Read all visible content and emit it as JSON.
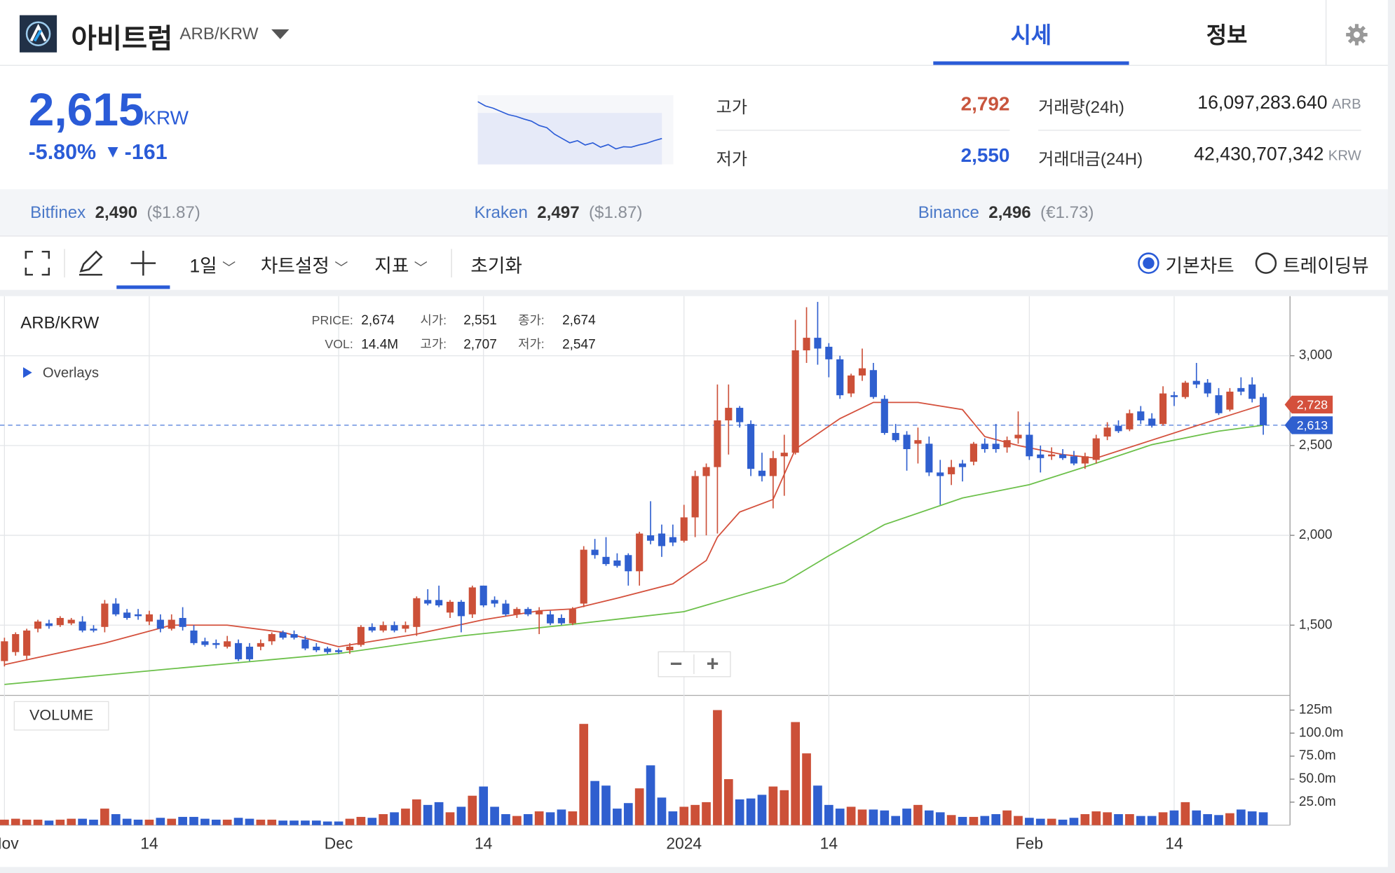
{
  "header": {
    "name": "아비트럼",
    "pair": "ARB/KRW",
    "tabs": [
      "시세",
      "정보"
    ]
  },
  "quote": {
    "price": "2,615",
    "unit": "KRW",
    "change_rate": "-5.80%",
    "direction": "▼",
    "change": "-161",
    "sparkline": {
      "values": [
        2810,
        2790,
        2780,
        2765,
        2750,
        2742,
        2730,
        2720,
        2700,
        2690,
        2660,
        2640,
        2620,
        2630,
        2610,
        2620,
        2600,
        2612,
        2592,
        2602,
        2600,
        2610,
        2618,
        2630,
        2640
      ],
      "ylim": [
        2520,
        2840
      ],
      "color": "#2a5bd7"
    }
  },
  "stats": [
    {
      "label": "고가",
      "value": "2,792"
    },
    {
      "label": "저가",
      "value": "2,550"
    },
    {
      "label": "거래량(24h)",
      "value": "16,097,283.640",
      "unit": "ARB"
    },
    {
      "label": "거래대금(24H)",
      "value": "42,430,707,342",
      "unit": "KRW"
    }
  ],
  "exchanges": [
    {
      "name": "Bitfinex",
      "price": "2,490",
      "ref": "($1.87)"
    },
    {
      "name": "Kraken",
      "price": "2,497",
      "ref": "($1.87)"
    },
    {
      "name": "Binance",
      "price": "2,496",
      "ref": "(€1.73)"
    }
  ],
  "toolbar": {
    "interval": "1일",
    "settings": "차트설정",
    "indicators": "지표",
    "reset": "초기화",
    "modes": [
      "기본차트",
      "트레이딩뷰"
    ]
  },
  "chart_data": {
    "type": "candlestick",
    "title": "ARB/KRW",
    "overlays_label": "Overlays",
    "volume_label": "VOLUME",
    "zoom": [
      "−",
      "+"
    ],
    "info": [
      [
        {
          "label": "PRICE:",
          "value": "2,674"
        },
        {
          "label": "시가:",
          "value": "2,551"
        },
        {
          "label": "종가:",
          "value": "2,674"
        }
      ],
      [
        {
          "label": "VOL:",
          "value": "14.4M"
        },
        {
          "label": "고가:",
          "value": "2,707"
        },
        {
          "label": "저가:",
          "value": "2,547"
        }
      ]
    ],
    "up_color": "#cc5038",
    "down_color": "#2f5fcf",
    "grid": true,
    "ohlc": [
      [
        1300,
        1430,
        1270,
        1410
      ],
      [
        1350,
        1460,
        1330,
        1450
      ],
      [
        1330,
        1480,
        1310,
        1470
      ],
      [
        1480,
        1530,
        1460,
        1520
      ],
      [
        1510,
        1530,
        1480,
        1495
      ],
      [
        1500,
        1550,
        1490,
        1540
      ],
      [
        1510,
        1540,
        1500,
        1530
      ],
      [
        1520,
        1550,
        1460,
        1470
      ],
      [
        1480,
        1500,
        1460,
        1470
      ],
      [
        1490,
        1640,
        1460,
        1620
      ],
      [
        1620,
        1650,
        1550,
        1560
      ],
      [
        1570,
        1590,
        1530,
        1540
      ],
      [
        1560,
        1590,
        1530,
        1550
      ],
      [
        1520,
        1580,
        1500,
        1560
      ],
      [
        1530,
        1560,
        1460,
        1480
      ],
      [
        1480,
        1560,
        1470,
        1530
      ],
      [
        1540,
        1600,
        1470,
        1490
      ],
      [
        1470,
        1500,
        1390,
        1400
      ],
      [
        1410,
        1430,
        1380,
        1390
      ],
      [
        1400,
        1420,
        1370,
        1390
      ],
      [
        1380,
        1440,
        1370,
        1410
      ],
      [
        1400,
        1420,
        1300,
        1310
      ],
      [
        1380,
        1400,
        1300,
        1310
      ],
      [
        1380,
        1420,
        1360,
        1400
      ],
      [
        1410,
        1460,
        1390,
        1450
      ],
      [
        1460,
        1470,
        1420,
        1430
      ],
      [
        1450,
        1470,
        1420,
        1430
      ],
      [
        1420,
        1440,
        1360,
        1370
      ],
      [
        1380,
        1400,
        1350,
        1360
      ],
      [
        1370,
        1380,
        1340,
        1350
      ],
      [
        1360,
        1370,
        1340,
        1350
      ],
      [
        1360,
        1400,
        1340,
        1380
      ],
      [
        1390,
        1500,
        1380,
        1490
      ],
      [
        1490,
        1510,
        1460,
        1470
      ],
      [
        1470,
        1520,
        1460,
        1500
      ],
      [
        1500,
        1520,
        1460,
        1470
      ],
      [
        1480,
        1520,
        1460,
        1500
      ],
      [
        1490,
        1660,
        1440,
        1650
      ],
      [
        1640,
        1700,
        1610,
        1620
      ],
      [
        1640,
        1720,
        1600,
        1610
      ],
      [
        1570,
        1640,
        1540,
        1630
      ],
      [
        1630,
        1640,
        1460,
        1550
      ],
      [
        1560,
        1720,
        1540,
        1710
      ],
      [
        1720,
        1720,
        1600,
        1610
      ],
      [
        1640,
        1660,
        1600,
        1620
      ],
      [
        1620,
        1640,
        1550,
        1560
      ],
      [
        1560,
        1600,
        1540,
        1590
      ],
      [
        1590,
        1600,
        1550,
        1560
      ],
      [
        1560,
        1600,
        1450,
        1580
      ],
      [
        1560,
        1580,
        1500,
        1510
      ],
      [
        1540,
        1560,
        1500,
        1510
      ],
      [
        1510,
        1600,
        1500,
        1590
      ],
      [
        1620,
        1940,
        1600,
        1920
      ],
      [
        1920,
        1980,
        1870,
        1890
      ],
      [
        1880,
        1990,
        1830,
        1840
      ],
      [
        1860,
        1900,
        1820,
        1830
      ],
      [
        1890,
        1900,
        1720,
        1800
      ],
      [
        1800,
        2020,
        1720,
        2010
      ],
      [
        2000,
        2190,
        1950,
        1970
      ],
      [
        2010,
        2060,
        1880,
        1940
      ],
      [
        1990,
        2060,
        1940,
        1960
      ],
      [
        1970,
        2170,
        1960,
        2100
      ],
      [
        2100,
        2360,
        1990,
        2330
      ],
      [
        2330,
        2400,
        2000,
        2380
      ],
      [
        2380,
        2840,
        2010,
        2640
      ],
      [
        2640,
        2840,
        2450,
        2710
      ],
      [
        2710,
        2720,
        2600,
        2630
      ],
      [
        2620,
        2640,
        2330,
        2370
      ],
      [
        2360,
        2460,
        2300,
        2330
      ],
      [
        2330,
        2470,
        2150,
        2430
      ],
      [
        2440,
        2560,
        2220,
        2460
      ],
      [
        2460,
        3200,
        2450,
        3030
      ],
      [
        3030,
        3270,
        2960,
        3100
      ],
      [
        3100,
        3300,
        2950,
        3040
      ],
      [
        3050,
        3070,
        2880,
        2980
      ],
      [
        2980,
        3000,
        2760,
        2780
      ],
      [
        2790,
        2900,
        2770,
        2890
      ],
      [
        2890,
        3040,
        2860,
        2930
      ],
      [
        2920,
        2960,
        2760,
        2770
      ],
      [
        2760,
        2780,
        2560,
        2570
      ],
      [
        2570,
        2620,
        2520,
        2530
      ],
      [
        2560,
        2580,
        2360,
        2480
      ],
      [
        2510,
        2600,
        2400,
        2530
      ],
      [
        2510,
        2550,
        2330,
        2350
      ],
      [
        2350,
        2420,
        2170,
        2330
      ],
      [
        2340,
        2420,
        2280,
        2380
      ],
      [
        2400,
        2420,
        2300,
        2380
      ],
      [
        2410,
        2520,
        2390,
        2510
      ],
      [
        2510,
        2540,
        2460,
        2480
      ],
      [
        2510,
        2620,
        2460,
        2480
      ],
      [
        2490,
        2550,
        2460,
        2530
      ],
      [
        2540,
        2690,
        2510,
        2560
      ],
      [
        2560,
        2630,
        2420,
        2440
      ],
      [
        2450,
        2500,
        2350,
        2430
      ],
      [
        2440,
        2490,
        2420,
        2450
      ],
      [
        2450,
        2480,
        2420,
        2430
      ],
      [
        2440,
        2470,
        2390,
        2400
      ],
      [
        2400,
        2460,
        2370,
        2440
      ],
      [
        2420,
        2560,
        2400,
        2540
      ],
      [
        2550,
        2630,
        2530,
        2600
      ],
      [
        2610,
        2640,
        2570,
        2580
      ],
      [
        2590,
        2700,
        2580,
        2680
      ],
      [
        2690,
        2720,
        2620,
        2640
      ],
      [
        2650,
        2680,
        2600,
        2610
      ],
      [
        2620,
        2830,
        2610,
        2790
      ],
      [
        2780,
        2800,
        2720,
        2770
      ],
      [
        2770,
        2860,
        2760,
        2850
      ],
      [
        2860,
        2960,
        2820,
        2840
      ],
      [
        2850,
        2870,
        2770,
        2790
      ],
      [
        2780,
        2820,
        2670,
        2680
      ],
      [
        2700,
        2820,
        2690,
        2800
      ],
      [
        2820,
        2880,
        2780,
        2800
      ],
      [
        2840,
        2880,
        2740,
        2760
      ],
      [
        2770,
        2790,
        2560,
        2613
      ]
    ],
    "volume": [
      6,
      7,
      6,
      6,
      5,
      6,
      7,
      7,
      6,
      18,
      12,
      7,
      6,
      6,
      8,
      7,
      9,
      9,
      7,
      6,
      6,
      8,
      7,
      6,
      6,
      5,
      5,
      5,
      5,
      4,
      4,
      7,
      9,
      8,
      12,
      14,
      18,
      28,
      22,
      25,
      14,
      20,
      32,
      42,
      20,
      12,
      10,
      12,
      15,
      14,
      17,
      15,
      110,
      48,
      43,
      18,
      24,
      40,
      65,
      30,
      15,
      20,
      22,
      25,
      125,
      50,
      28,
      29,
      33,
      42,
      38,
      112,
      78,
      43,
      22,
      18,
      20,
      17,
      17,
      16,
      10,
      18,
      22,
      16,
      14,
      11,
      9,
      9,
      10,
      12,
      16,
      10,
      8,
      7,
      7,
      6,
      8,
      12,
      15,
      14,
      12,
      12,
      10,
      10,
      14,
      16,
      25,
      16,
      12,
      11,
      13,
      17,
      15,
      14
    ],
    "lines": [
      {
        "color": "#d4503c",
        "x": [
          0,
          9,
          15,
          20,
          25,
          30,
          37,
          43,
          48,
          51,
          55,
          60,
          63,
          64,
          66,
          69,
          71,
          75,
          78,
          82,
          86,
          88,
          91,
          95,
          98,
          103,
          108,
          113
        ],
        "values": [
          1280,
          1400,
          1500,
          1500,
          1460,
          1380,
          1450,
          1530,
          1580,
          1590,
          1650,
          1730,
          1860,
          1990,
          2130,
          2200,
          2480,
          2650,
          2740,
          2740,
          2700,
          2550,
          2500,
          2450,
          2430,
          2530,
          2630,
          2728
        ]
      },
      {
        "color": "#6cc04a",
        "x": [
          0,
          15,
          30,
          41,
          51,
          61,
          70,
          74,
          79,
          86,
          92,
          97,
          103,
          109,
          113
        ],
        "values": [
          1170,
          1257,
          1342,
          1440,
          1505,
          1575,
          1738,
          1886,
          2060,
          2208,
          2282,
          2381,
          2505,
          2580,
          2613
        ]
      }
    ],
    "xlim": [
      -0.4,
      115.4
    ],
    "xticks": [
      {
        "value": 0,
        "label": "Nov"
      },
      {
        "value": 13,
        "label": "14"
      },
      {
        "value": 30,
        "label": "Dec"
      },
      {
        "value": 43,
        "label": "14"
      },
      {
        "value": 61,
        "label": "2024"
      },
      {
        "value": 74,
        "label": "14"
      },
      {
        "value": 92,
        "label": "Feb"
      },
      {
        "value": 105,
        "label": "14"
      }
    ],
    "ylim": [
      1109,
      3332
    ],
    "yticks": [
      {
        "value": 3000,
        "label": "3,000"
      },
      {
        "value": 2500,
        "label": "2,500"
      },
      {
        "value": 2000,
        "label": "2,000"
      },
      {
        "value": 1500,
        "label": "1,500"
      }
    ],
    "y2lim": [
      0,
      141
    ],
    "y2ticks": [
      {
        "value": 125,
        "label": "125m"
      },
      {
        "value": 100,
        "label": "100.0m"
      },
      {
        "value": 75,
        "label": "75.0m"
      },
      {
        "value": 50,
        "label": "50.0m"
      },
      {
        "value": 25,
        "label": "25.0m"
      }
    ],
    "price_markers": [
      {
        "value": 2728,
        "label": "2,728",
        "color": "#d4503c"
      },
      {
        "value": 2613,
        "label": "2,613",
        "color": "#2f5fcf"
      }
    ]
  }
}
